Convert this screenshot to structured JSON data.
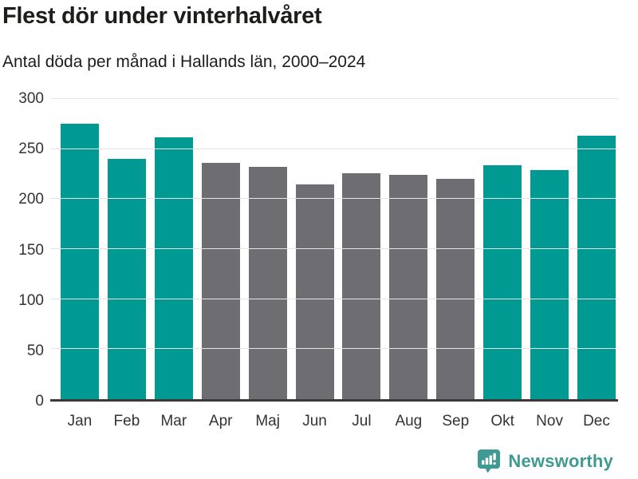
{
  "title": "Flest dör under vinterhalvåret",
  "subtitle": "Antal döda per månad i Hallands län, 2000–2024",
  "branding": {
    "name": "Newsworthy",
    "icon": "newsworthy-speech-bubble-bar-chart-icon",
    "color": "#3e9a93"
  },
  "colors": {
    "winter_bar": "#009a93",
    "summer_bar": "#6e6d72",
    "gridline": "#e4e4e4",
    "axis_line": "#3a3a3a",
    "text": "#1d1d1b",
    "tick_text": "#333333"
  },
  "chart_data": {
    "type": "bar",
    "title": "Flest dör under vinterhalvåret",
    "subtitle": "Antal döda per månad i Hallands län, 2000–2024",
    "categories": [
      "Jan",
      "Feb",
      "Mar",
      "Apr",
      "Maj",
      "Jun",
      "Jul",
      "Aug",
      "Sep",
      "Okt",
      "Nov",
      "Dec"
    ],
    "values": [
      275,
      240,
      262,
      236,
      232,
      215,
      226,
      224,
      220,
      234,
      229,
      263
    ],
    "bar_groups": [
      "winter",
      "winter",
      "winter",
      "summer",
      "summer",
      "summer",
      "summer",
      "summer",
      "summer",
      "winter",
      "winter",
      "winter"
    ],
    "group_colors": {
      "winter": "#009a93",
      "summer": "#6e6d72"
    },
    "xlabel": "",
    "ylabel": "",
    "ylim": [
      0,
      300
    ],
    "yticks": [
      0,
      50,
      100,
      150,
      200,
      250,
      300
    ],
    "grid": true,
    "legend": "none"
  }
}
